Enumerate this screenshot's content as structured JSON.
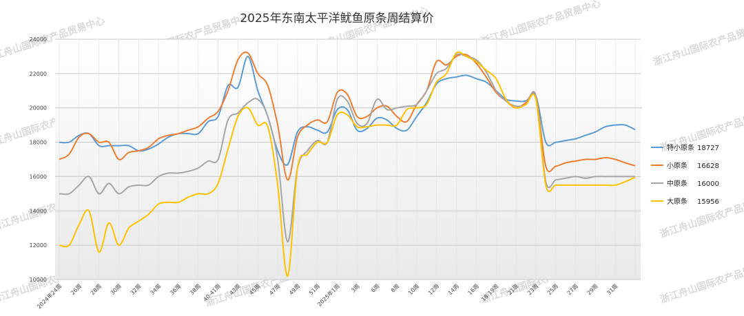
{
  "chart_data": {
    "type": "line",
    "title": "2025年东南太平洋鱿鱼原条周结算价",
    "x_tick_labels": [
      "2024年24周",
      "26周",
      "28周",
      "30周",
      "32周",
      "34周",
      "36周",
      "38周",
      "40-41周",
      "43周",
      "45周",
      "47周",
      "49周",
      "51周",
      "2025年1周",
      "3周",
      "6周",
      "8周",
      "10周",
      "12周",
      "14周",
      "16周",
      "18-19周",
      "21周",
      "23周",
      "25周",
      "27周",
      "29周",
      "31周"
    ],
    "ylim": [
      10000,
      24000
    ],
    "yticks": [
      10000,
      12000,
      14000,
      16000,
      18000,
      20000,
      22000,
      24000
    ],
    "grid": true,
    "legend_position": "right",
    "series": [
      {
        "name": "特小原条",
        "color": "#5b9bd5",
        "last_value": "18727",
        "values": [
          18000,
          18000,
          18400,
          18500,
          17800,
          17800,
          17800,
          17800,
          17500,
          17600,
          17900,
          18300,
          18500,
          18500,
          18500,
          19200,
          19500,
          21300,
          21200,
          23000,
          21000,
          19500,
          17500,
          16700,
          18600,
          18900,
          18700,
          18600,
          19900,
          19900,
          18700,
          18800,
          19400,
          19300,
          18800,
          18700,
          19500,
          20300,
          21400,
          21700,
          21800,
          21900,
          21700,
          21500,
          21000,
          20500,
          20400,
          20400,
          20700,
          18000,
          18000,
          18100,
          18200,
          18400,
          18600,
          18900,
          19000,
          19000,
          18727
        ]
      },
      {
        "name": "小原条",
        "color": "#ed7d31",
        "last_value": "16628",
        "values": [
          17000,
          17300,
          18300,
          18500,
          18000,
          18000,
          17000,
          17400,
          17500,
          17700,
          18200,
          18400,
          18500,
          18700,
          18900,
          19400,
          19800,
          21000,
          22800,
          23200,
          22000,
          21300,
          19000,
          15800,
          18300,
          19000,
          19300,
          19200,
          20900,
          20800,
          19500,
          19500,
          20000,
          20100,
          19500,
          19200,
          20200,
          21000,
          22700,
          22500,
          23000,
          23100,
          22600,
          21800,
          20900,
          20400,
          20000,
          20300,
          20700,
          16600,
          16600,
          16800,
          16900,
          17000,
          17000,
          17100,
          17000,
          16800,
          16628
        ]
      },
      {
        "name": "中原条",
        "color": "#a5a5a5",
        "last_value": "16000",
        "values": [
          15000,
          15000,
          15500,
          16000,
          15000,
          15600,
          15000,
          15400,
          15500,
          15500,
          16000,
          16200,
          16200,
          16300,
          16500,
          16900,
          17000,
          19300,
          19700,
          20300,
          20500,
          19500,
          17000,
          12200,
          16500,
          17500,
          18100,
          18000,
          20500,
          20400,
          19100,
          19100,
          20500,
          19900,
          20000,
          20100,
          20200,
          21000,
          22000,
          22300,
          23100,
          23000,
          22800,
          22100,
          21000,
          20400,
          20100,
          20200,
          20700,
          15700,
          15800,
          15900,
          16000,
          15900,
          16000,
          16000,
          16000,
          16000,
          16000
        ]
      },
      {
        "name": "大原条",
        "color": "#ffc000",
        "last_value": "15956",
        "values": [
          12000,
          12000,
          13200,
          14000,
          11600,
          13300,
          12000,
          13000,
          13400,
          13800,
          14400,
          14500,
          14500,
          14800,
          15000,
          15000,
          15600,
          17600,
          19500,
          20000,
          19000,
          18900,
          15500,
          10200,
          16500,
          17300,
          18000,
          18000,
          19600,
          19600,
          18900,
          18900,
          19000,
          19000,
          19000,
          19900,
          20000,
          20200,
          21500,
          22000,
          23200,
          23000,
          22700,
          22200,
          21700,
          20500,
          20000,
          20200,
          20500,
          15500,
          15500,
          15500,
          15500,
          15500,
          15500,
          15500,
          15500,
          15700,
          15956
        ]
      }
    ]
  },
  "watermark": "浙江舟山国际农产品贸易中心"
}
